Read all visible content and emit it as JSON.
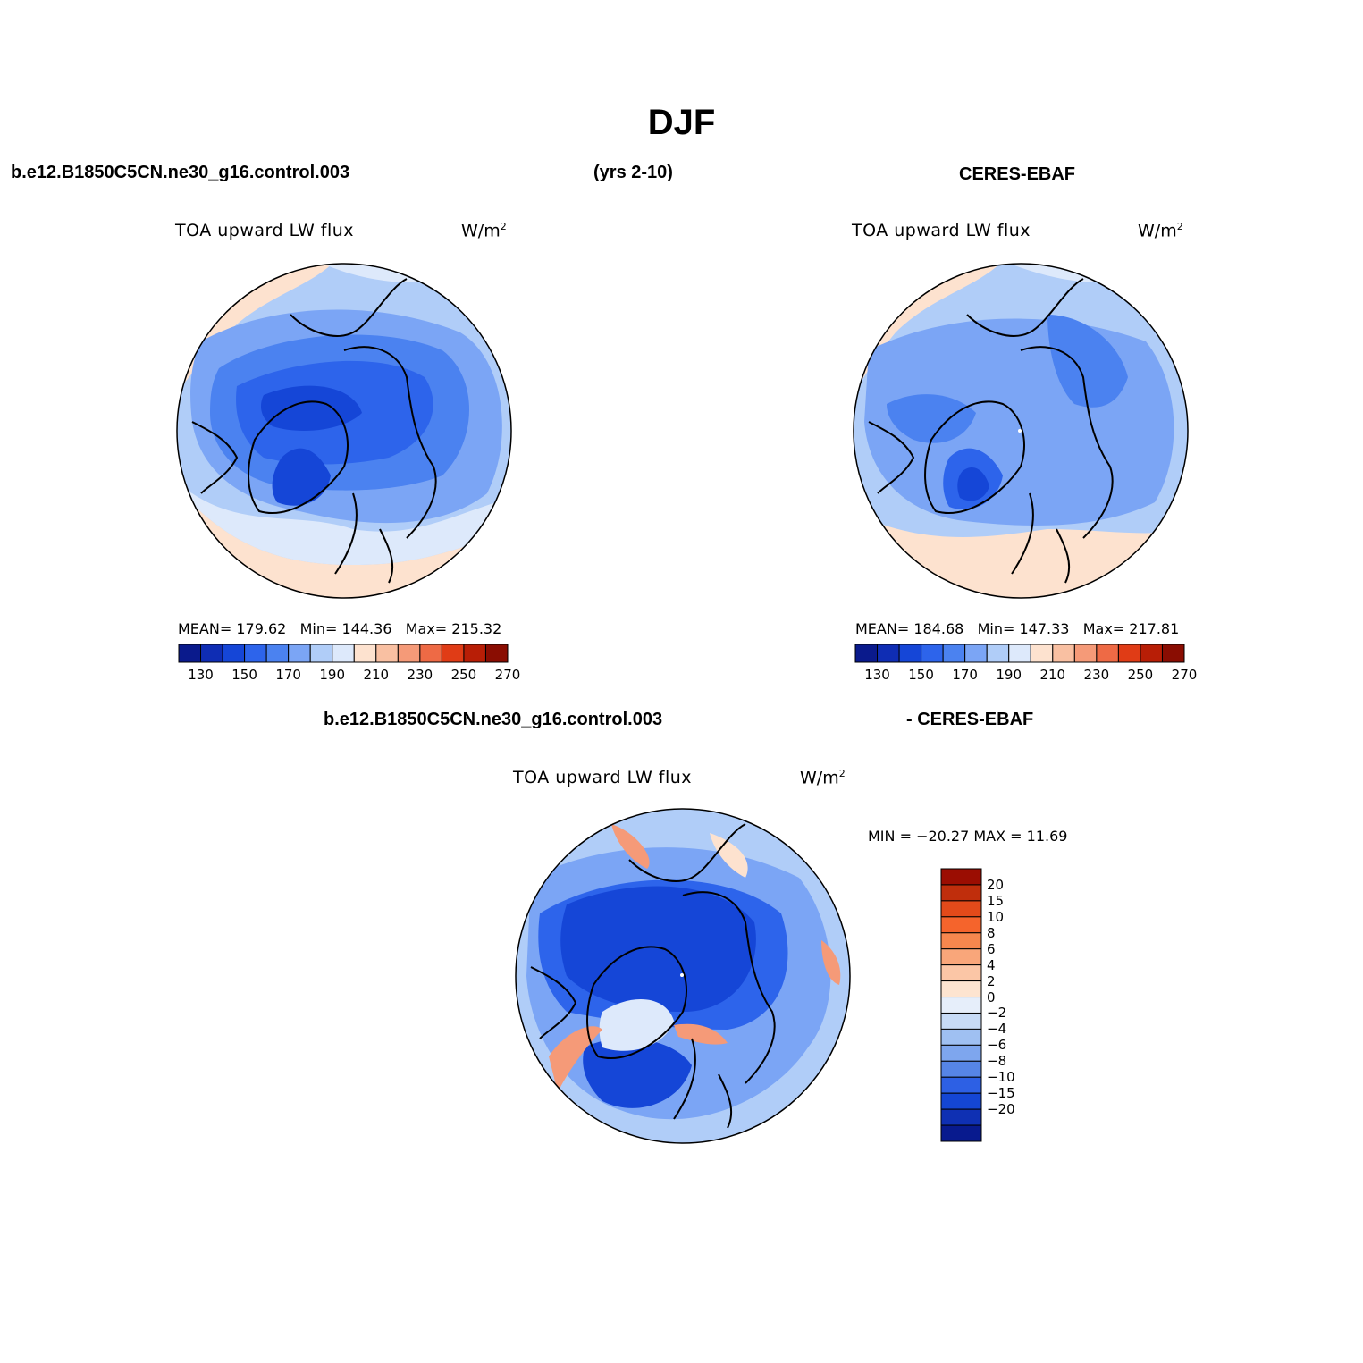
{
  "title": "DJF",
  "header": {
    "case_name": "b.e12.B1850C5CN.ne30_g16.control.003",
    "years": "(yrs 2-10)",
    "obs_name": "CERES-EBAF",
    "diff_case": "b.e12.B1850C5CN.ne30_g16.control.003",
    "diff_obs": "- CERES-EBAF"
  },
  "panels": [
    {
      "id": "model",
      "variable": "TOA upward LW flux",
      "units": "W/m",
      "units_sup": "2",
      "stats": {
        "mean_label": "MEAN=",
        "mean": "179.62",
        "min_label": "Min=",
        "min": "144.36",
        "max_label": "Max=",
        "max": "215.32"
      }
    },
    {
      "id": "obs",
      "variable": "TOA upward LW flux",
      "units": "W/m",
      "units_sup": "2",
      "stats": {
        "mean_label": "MEAN=",
        "mean": "184.68",
        "min_label": "Min=",
        "min": "147.33",
        "max_label": "Max=",
        "max": "217.81"
      }
    },
    {
      "id": "diff",
      "variable": "TOA upward LW flux",
      "units": "W/m",
      "units_sup": "2",
      "stats_text": "MIN = −20.27 MAX =  11.69"
    }
  ],
  "colorbar_abs": {
    "colors": [
      "#0a1a8c",
      "#0f2db4",
      "#1546d7",
      "#2d64eb",
      "#4b82f0",
      "#7ba5f5",
      "#b0cdf8",
      "#dde9fb",
      "#fde2cf",
      "#f9c0a2",
      "#f59a78",
      "#ee6a45",
      "#e03c16",
      "#b81e06",
      "#8a0d02"
    ],
    "labels": [
      "130",
      "150",
      "170",
      "190",
      "210",
      "230",
      "250",
      "270"
    ]
  },
  "colorbar_diff": {
    "colors": [
      "#9b0d02",
      "#c02e0c",
      "#e34a1a",
      "#f5642c",
      "#f7874e",
      "#f9a67a",
      "#fbc6a6",
      "#fde4d0",
      "#e6eefa",
      "#c7dbf7",
      "#9fc0f2",
      "#7ea6ee",
      "#5685e6",
      "#2d60e4",
      "#1446d4",
      "#0f30b3",
      "#081a8e"
    ],
    "labels": [
      "20",
      "15",
      "10",
      "8",
      "6",
      "4",
      "2",
      "0",
      "−2",
      "−4",
      "−6",
      "−8",
      "−10",
      "−15",
      "−20"
    ]
  },
  "map_colors": {
    "deep_blue": "#1546d7",
    "mid_blue": "#2d64eb",
    "blue": "#4b82f0",
    "light_blue": "#7ba5f5",
    "pale_blue": "#b0cdf8",
    "very_pale_blue": "#dde9fb",
    "peach": "#fde2cf",
    "light_orange": "#f9c0a2",
    "orange": "#f59a78",
    "red_orange": "#e03c16",
    "coast": "#000000"
  }
}
